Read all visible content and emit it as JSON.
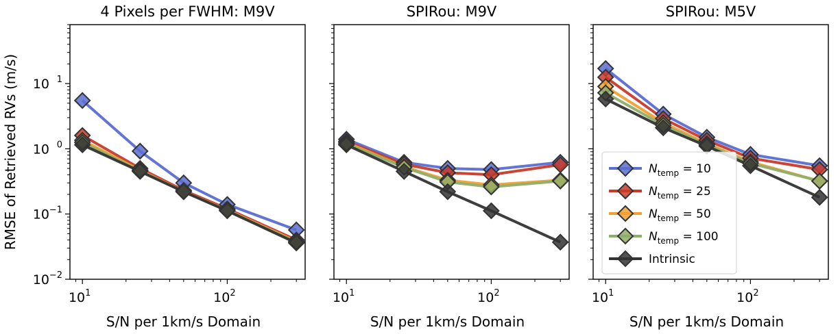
{
  "figure": {
    "ylabel": "RMSE of Retrieved RVs (m/s)"
  },
  "legend": {
    "panel": 2,
    "location": "lower-left",
    "entries": [
      {
        "symbol": "N",
        "sub": "temp",
        "rest": " = 10"
      },
      {
        "symbol": "N",
        "sub": "temp",
        "rest": " = 25"
      },
      {
        "symbol": "N",
        "sub": "temp",
        "rest": " = 50"
      },
      {
        "symbol": "N",
        "sub": "temp",
        "rest": " = 100"
      },
      {
        "symbol": "",
        "sub": "",
        "rest": "Intrinsic"
      }
    ]
  },
  "axes": {
    "x_ticks": [
      {
        "base": "10",
        "exp": "1",
        "value": 10
      },
      {
        "base": "10",
        "exp": "2",
        "value": 100
      }
    ],
    "y_ticks": [
      {
        "base": "10",
        "exp": "1",
        "value": 10
      },
      {
        "base": "10",
        "exp": "0",
        "value": 1
      },
      {
        "base": "10",
        "exp": "−1",
        "value": 0.1
      },
      {
        "base": "10",
        "exp": "−2",
        "value": 0.01
      }
    ]
  },
  "chart_data": [
    {
      "type": "line",
      "title": "4 Pixels per FWHM: M9V",
      "xlabel": "S/N per 1km/s Domain",
      "ylabel": "RMSE of Retrieved RVs (m/s)",
      "xscale": "log",
      "yscale": "log",
      "xlim": [
        8.2,
        345
      ],
      "ylim": [
        0.01,
        80
      ],
      "x": [
        10,
        25,
        50,
        100,
        300
      ],
      "series": [
        {
          "name": "N_temp = 10",
          "color": "#5b6ed1",
          "values": [
            5.5,
            0.92,
            0.3,
            0.14,
            0.057
          ]
        },
        {
          "name": "N_temp = 25",
          "color": "#c93a2a",
          "values": [
            1.6,
            0.5,
            0.23,
            0.12,
            0.04
          ]
        },
        {
          "name": "N_temp = 50",
          "color": "#f0a030",
          "values": [
            1.35,
            0.47,
            0.22,
            0.115,
            0.038
          ]
        },
        {
          "name": "N_temp = 100",
          "color": "#8fae6a",
          "values": [
            1.25,
            0.46,
            0.22,
            0.113,
            0.037
          ]
        },
        {
          "name": "Intrinsic",
          "color": "#333333",
          "values": [
            1.15,
            0.45,
            0.22,
            0.112,
            0.036
          ]
        }
      ]
    },
    {
      "type": "line",
      "title": "SPIRou: M9V",
      "xlabel": "S/N per 1km/s Domain",
      "xscale": "log",
      "yscale": "log",
      "xlim": [
        8.2,
        345
      ],
      "ylim": [
        0.01,
        80
      ],
      "x": [
        10,
        25,
        50,
        100,
        300
      ],
      "series": [
        {
          "name": "N_temp = 10",
          "color": "#5b6ed1",
          "values": [
            1.4,
            0.62,
            0.5,
            0.48,
            0.62
          ]
        },
        {
          "name": "N_temp = 25",
          "color": "#c93a2a",
          "values": [
            1.3,
            0.58,
            0.43,
            0.4,
            0.57
          ]
        },
        {
          "name": "N_temp = 50",
          "color": "#f0a030",
          "values": [
            1.25,
            0.53,
            0.33,
            0.28,
            0.33
          ]
        },
        {
          "name": "N_temp = 100",
          "color": "#8fae6a",
          "values": [
            1.2,
            0.52,
            0.31,
            0.26,
            0.32
          ]
        },
        {
          "name": "Intrinsic",
          "color": "#333333",
          "values": [
            1.15,
            0.45,
            0.22,
            0.112,
            0.037
          ]
        }
      ]
    },
    {
      "type": "line",
      "title": "SPIRou: M5V",
      "xlabel": "S/N per 1km/s Domain",
      "xscale": "log",
      "yscale": "log",
      "xlim": [
        8.2,
        345
      ],
      "ylim": [
        0.01,
        80
      ],
      "x": [
        10,
        25,
        50,
        100,
        300
      ],
      "series": [
        {
          "name": "N_temp = 10",
          "color": "#5b6ed1",
          "values": [
            17,
            3.4,
            1.5,
            0.82,
            0.55
          ]
        },
        {
          "name": "N_temp = 25",
          "color": "#c93a2a",
          "values": [
            12.5,
            2.9,
            1.35,
            0.72,
            0.48
          ]
        },
        {
          "name": "N_temp = 50",
          "color": "#f0a030",
          "values": [
            9.0,
            2.5,
            1.2,
            0.63,
            0.32
          ]
        },
        {
          "name": "N_temp = 100",
          "color": "#8fae6a",
          "values": [
            7.2,
            2.3,
            1.15,
            0.6,
            0.32
          ]
        },
        {
          "name": "Intrinsic",
          "color": "#333333",
          "values": [
            5.8,
            2.1,
            1.1,
            0.55,
            0.18
          ]
        }
      ]
    }
  ]
}
